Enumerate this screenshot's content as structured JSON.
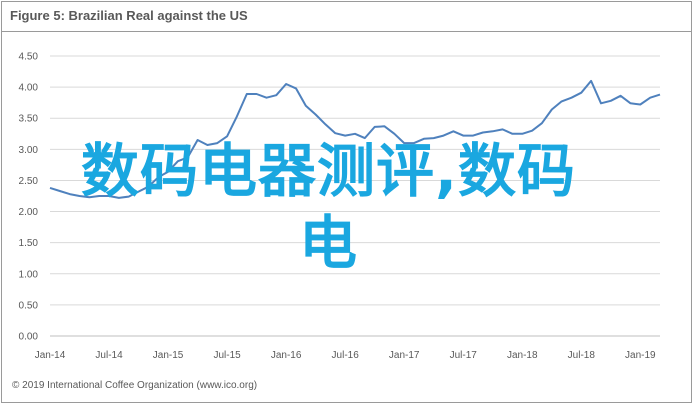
{
  "chart_data": {
    "type": "line",
    "title": "Figure 5: Brazilian Real against the US",
    "xlabel": "",
    "ylabel": "",
    "ylim": [
      0,
      4.5
    ],
    "yticks": [
      "0.00",
      "0.50",
      "1.00",
      "1.50",
      "2.00",
      "2.50",
      "3.00",
      "3.50",
      "4.00",
      "4.50"
    ],
    "xticks": [
      "Jan-14",
      "Jul-14",
      "Jan-15",
      "Jul-15",
      "Jan-16",
      "Jul-16",
      "Jan-17",
      "Jul-17",
      "Jan-18",
      "Jul-18",
      "Jan-19"
    ],
    "grid": "horizontal",
    "line_color": "#4f81bd",
    "series": [
      {
        "values": [
          2.38,
          2.33,
          2.28,
          2.25,
          2.23,
          2.25,
          2.25,
          2.22,
          2.24,
          2.32,
          2.4,
          2.55,
          2.64,
          2.81,
          2.87,
          3.15,
          3.07,
          3.1,
          3.21,
          3.53,
          3.89,
          3.89,
          3.83,
          3.87,
          4.05,
          3.98,
          3.7,
          3.56,
          3.4,
          3.26,
          3.22,
          3.25,
          3.18,
          3.36,
          3.37,
          3.25,
          3.1,
          3.1,
          3.17,
          3.18,
          3.22,
          3.29,
          3.22,
          3.22,
          3.27,
          3.29,
          3.32,
          3.25,
          3.25,
          3.3,
          3.42,
          3.64,
          3.77,
          3.83,
          3.91,
          4.1,
          3.74,
          3.78,
          3.86,
          3.74,
          3.72,
          3.83,
          3.88
        ]
      }
    ]
  },
  "overlay_text": {
    "line1": "数码电器测评,数码",
    "line2": "电"
  },
  "copyright": "© 2019 International Coffee Organization (www.ico.org)"
}
